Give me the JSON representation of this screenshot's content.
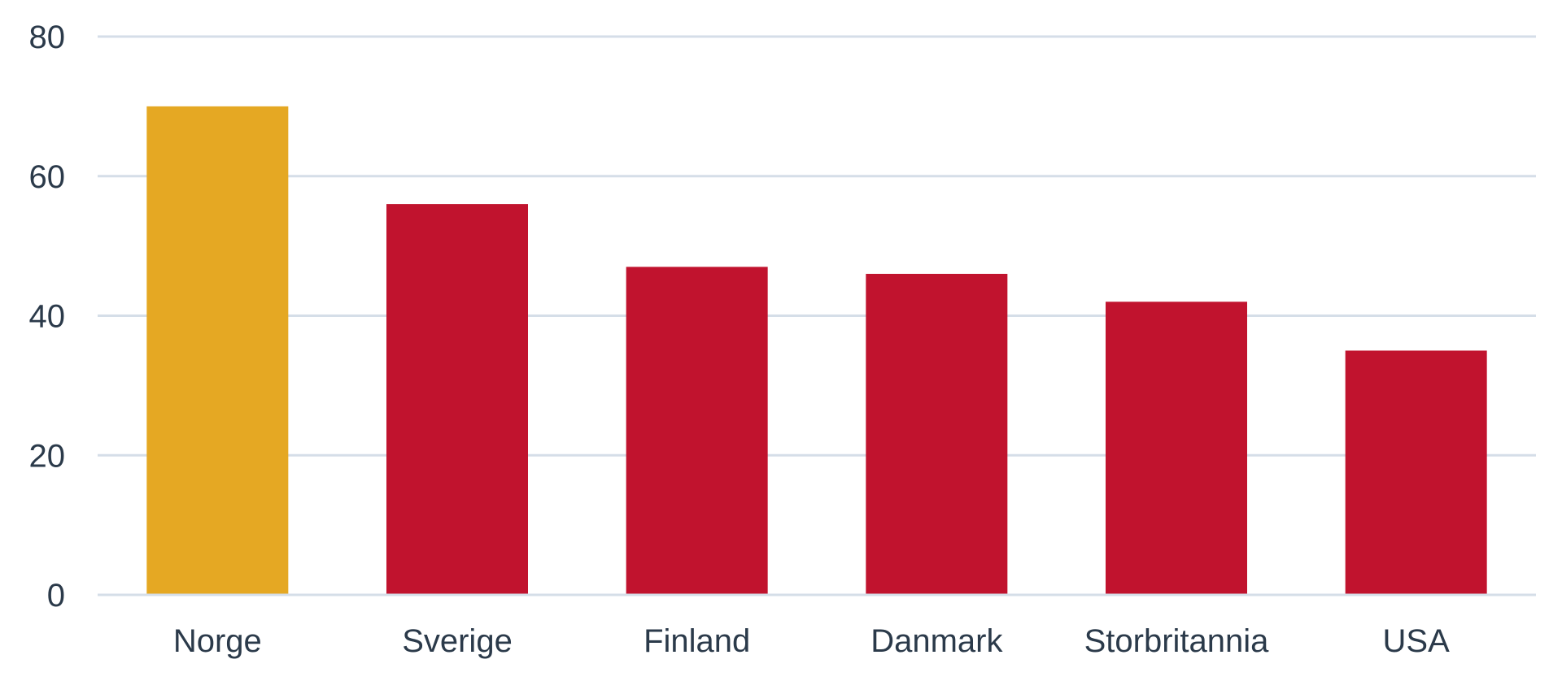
{
  "chart_data": {
    "type": "bar",
    "title": "",
    "xlabel": "",
    "ylabel": "",
    "categories": [
      "Norge",
      "Sverige",
      "Finland",
      "Danmark",
      "Storbritannia",
      "USA"
    ],
    "values": [
      70,
      56,
      47,
      46,
      42,
      35
    ],
    "bar_colors": [
      "#E5A823",
      "#C1132E",
      "#C1132E",
      "#C1132E",
      "#C1132E",
      "#C1132E"
    ],
    "ylim": [
      0,
      80
    ],
    "yticks": [
      0,
      20,
      40,
      60,
      80
    ],
    "grid": true,
    "gridline_color": "#D5DEE8",
    "text_color": "#2B3A4A"
  }
}
